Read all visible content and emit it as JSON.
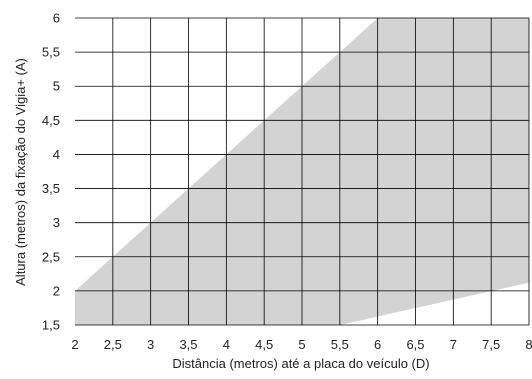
{
  "chart_data": {
    "type": "area",
    "title": "",
    "xlabel": "Distância (metros) até a placa do veículo (D)",
    "ylabel": "Altura (metros) da fixação do Vigia+ (A)",
    "xlim": [
      2,
      8
    ],
    "ylim": [
      1.5,
      6
    ],
    "grid": true,
    "x_ticks": [
      {
        "value": 2,
        "label": "2"
      },
      {
        "value": 2.5,
        "label": "2,5"
      },
      {
        "value": 3,
        "label": "3"
      },
      {
        "value": 3.5,
        "label": "3,5"
      },
      {
        "value": 4,
        "label": "4"
      },
      {
        "value": 4.5,
        "label": "4,5"
      },
      {
        "value": 5,
        "label": "5"
      },
      {
        "value": 5.5,
        "label": "5,5"
      },
      {
        "value": 6,
        "label": "6"
      },
      {
        "value": 6.5,
        "label": "6,5"
      },
      {
        "value": 7,
        "label": "7"
      },
      {
        "value": 7.5,
        "label": "7,5"
      },
      {
        "value": 8,
        "label": "8"
      }
    ],
    "y_ticks": [
      {
        "value": 1.5,
        "label": "1,5"
      },
      {
        "value": 2,
        "label": "2"
      },
      {
        "value": 2.5,
        "label": "2,5"
      },
      {
        "value": 3,
        "label": "3"
      },
      {
        "value": 3.5,
        "label": "3,5"
      },
      {
        "value": 4,
        "label": "4"
      },
      {
        "value": 4.5,
        "label": "4,5"
      },
      {
        "value": 5,
        "label": "5"
      },
      {
        "value": 5.5,
        "label": "5,5"
      },
      {
        "value": 6,
        "label": "6"
      }
    ],
    "region": {
      "fill": "#d3d3d3",
      "upper": [
        [
          2,
          2
        ],
        [
          6,
          6
        ],
        [
          8,
          6
        ]
      ],
      "lower": [
        [
          2,
          2
        ],
        [
          2,
          1.5
        ],
        [
          5.5,
          1.5
        ],
        [
          8,
          2.12
        ]
      ]
    },
    "grid_color": "#000000",
    "text_color": "#222222"
  }
}
